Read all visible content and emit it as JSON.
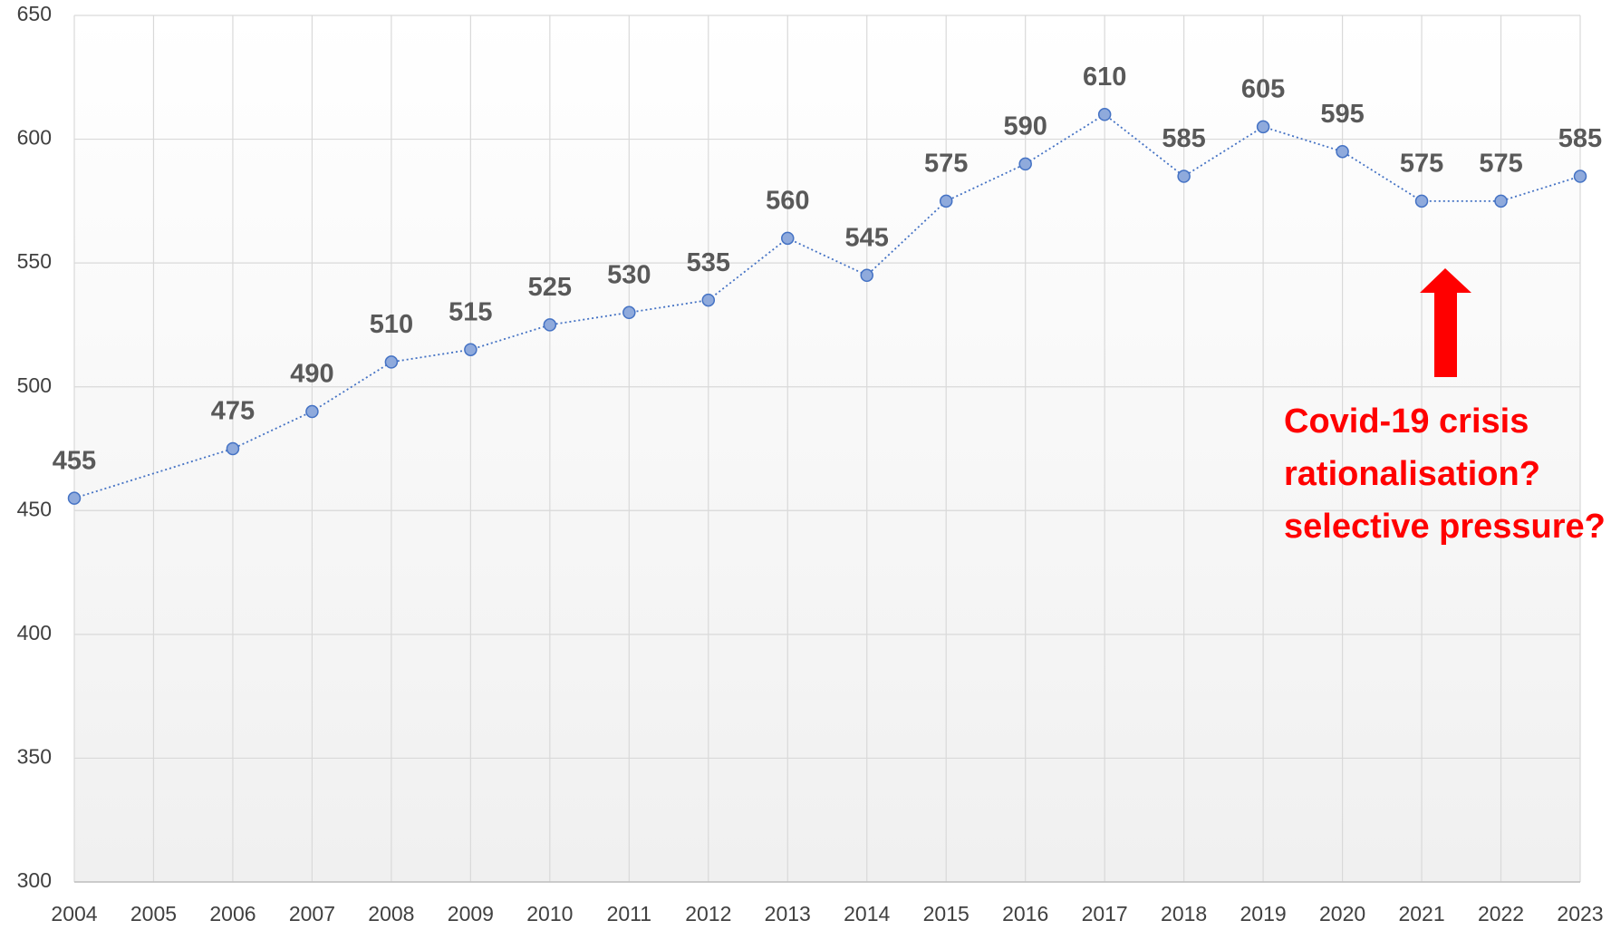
{
  "chart_data": {
    "type": "line",
    "x": [
      2004,
      2006,
      2007,
      2008,
      2009,
      2010,
      2011,
      2012,
      2013,
      2014,
      2015,
      2016,
      2017,
      2018,
      2019,
      2020,
      2021,
      2022,
      2023
    ],
    "series": [
      {
        "color": "#4472c4",
        "values": [
          455,
          475,
          490,
          510,
          515,
          525,
          530,
          535,
          560,
          545,
          575,
          590,
          610,
          585,
          605,
          595,
          575,
          575,
          585
        ]
      }
    ],
    "xlim": [
      2004,
      2023
    ],
    "xticks": [
      2004,
      2005,
      2006,
      2007,
      2008,
      2009,
      2010,
      2011,
      2012,
      2013,
      2014,
      2015,
      2016,
      2017,
      2018,
      2019,
      2020,
      2021,
      2022,
      2023
    ],
    "ylim": [
      300,
      650
    ],
    "yticks": [
      300,
      350,
      400,
      450,
      500,
      550,
      600,
      650
    ],
    "grid": true,
    "annotation": {
      "color": "#ff0000",
      "lines": [
        "Covid-19 crisis",
        "rationalisation?",
        "selective pressure?"
      ]
    }
  }
}
